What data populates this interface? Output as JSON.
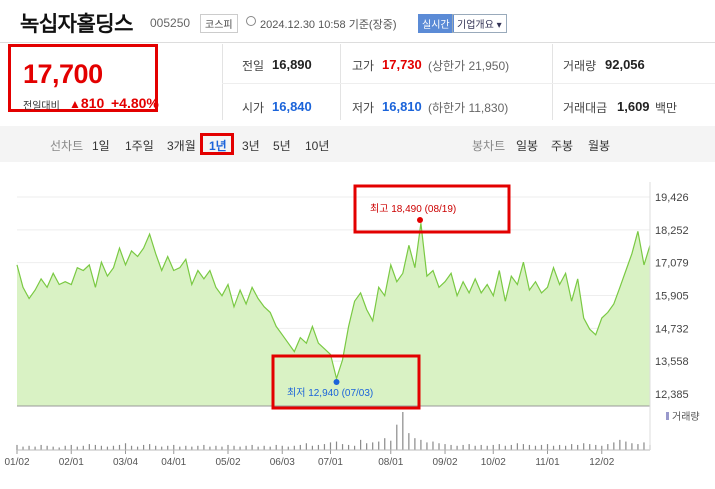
{
  "header": {
    "name": "녹십자홀딩스",
    "code": "005250",
    "market": "코스피",
    "datetime": "2024.12.30 10:58 기준(장중)",
    "realtime": "실시간",
    "corp_info": "기업개요",
    "corp_info_icon": "chevron-down-icon"
  },
  "price": {
    "current": "17,700",
    "change_label": "전일대비",
    "change_icon": "up-triangle-icon",
    "change": "810",
    "change_pct": "+4.80%",
    "up_color": "#e30000",
    "down_color": "#1b64da"
  },
  "info": {
    "prev_label": "전일",
    "prev": "16,890",
    "high_label": "고가",
    "high": "17,730",
    "upper_limit": "(상한가 21,950)",
    "volume_label": "거래량",
    "volume": "92,056",
    "open_label": "시가",
    "open": "16,840",
    "low_label": "저가",
    "low": "16,810",
    "lower_limit": "(하한가 11,830)",
    "amount_label": "거래대금",
    "amount": "1,609",
    "amount_unit": "백만"
  },
  "tabs": {
    "line_label": "선차트",
    "periods": [
      "1일",
      "1주일",
      "3개월",
      "1년",
      "3년",
      "5년",
      "10년"
    ],
    "selected": "1년",
    "candle_label": "봉차트",
    "candles": [
      "일봉",
      "주봉",
      "월봉"
    ]
  },
  "chart_data": {
    "type": "area",
    "yticks": [
      "19,426",
      "18,252",
      "17,079",
      "15,905",
      "14,732",
      "13,558",
      "12,385"
    ],
    "ylim": [
      12385,
      19426
    ],
    "xticks": [
      "01/02",
      "02/01",
      "03/04",
      "04/01",
      "05/02",
      "06/03",
      "07/01",
      "08/01",
      "09/02",
      "10/02",
      "11/01",
      "12/02"
    ],
    "x": [
      "01/02",
      "01/05",
      "01/08",
      "01/11",
      "01/15",
      "01/18",
      "01/22",
      "01/25",
      "01/29",
      "02/01",
      "02/05",
      "02/08",
      "02/13",
      "02/16",
      "02/20",
      "02/23",
      "02/27",
      "03/01",
      "03/04",
      "03/07",
      "03/11",
      "03/14",
      "03/18",
      "03/21",
      "03/25",
      "03/28",
      "04/01",
      "04/04",
      "04/08",
      "04/11",
      "04/15",
      "04/18",
      "04/22",
      "04/25",
      "04/29",
      "05/02",
      "05/06",
      "05/09",
      "05/13",
      "05/16",
      "05/20",
      "05/23",
      "05/27",
      "05/30",
      "06/03",
      "06/06",
      "06/10",
      "06/13",
      "06/17",
      "06/20",
      "06/24",
      "06/27",
      "07/01",
      "07/03",
      "07/05",
      "07/09",
      "07/12",
      "07/16",
      "07/19",
      "07/23",
      "07/26",
      "07/30",
      "08/01",
      "08/05",
      "08/08",
      "08/12",
      "08/16",
      "08/19",
      "08/22",
      "08/26",
      "08/29",
      "09/02",
      "09/05",
      "09/09",
      "09/12",
      "09/16",
      "09/20",
      "09/24",
      "09/27",
      "10/02",
      "10/07",
      "10/10",
      "10/14",
      "10/17",
      "10/21",
      "10/24",
      "10/28",
      "10/31",
      "11/01",
      "11/05",
      "11/08",
      "11/12",
      "11/15",
      "11/19",
      "11/22",
      "11/26",
      "11/29",
      "12/02",
      "12/05",
      "12/09",
      "12/12",
      "12/16",
      "12/19",
      "12/23",
      "12/27",
      "12/30"
    ],
    "values": [
      17000,
      16200,
      15800,
      16100,
      16500,
      16200,
      16700,
      16300,
      16400,
      16300,
      16900,
      16800,
      17000,
      16200,
      17100,
      16600,
      16900,
      17600,
      17000,
      17500,
      17300,
      17600,
      18100,
      17400,
      16800,
      17300,
      16800,
      16900,
      17200,
      16300,
      16800,
      16500,
      16800,
      16200,
      15900,
      16300,
      15500,
      16100,
      15600,
      16200,
      15800,
      15500,
      15300,
      14800,
      14500,
      14200,
      13900,
      14400,
      14200,
      14800,
      14200,
      14000,
      13800,
      12940,
      13600,
      14800,
      15700,
      16000,
      15400,
      15000,
      16200,
      15900,
      17000,
      16400,
      16700,
      17700,
      16900,
      18490,
      16600,
      16800,
      16200,
      16400,
      16700,
      15900,
      16400,
      16000,
      16500,
      16000,
      16300,
      15900,
      16800,
      15700,
      16600,
      16300,
      17100,
      16100,
      16400,
      16000,
      16200,
      16900,
      16300,
      16700,
      15700,
      16500,
      15100,
      14700,
      14500,
      15100,
      15300,
      15600,
      16200,
      16800,
      17400,
      18200,
      17000,
      17700
    ],
    "max": {
      "label": "최고",
      "value": "18,490",
      "date": "(08/19)"
    },
    "min": {
      "label": "최저",
      "value": "12,940",
      "date": "(07/03)"
    },
    "volume_label": "거래량",
    "volume": [
      6,
      4,
      5,
      4,
      6,
      5,
      4,
      3,
      5,
      6,
      4,
      5,
      7,
      6,
      5,
      4,
      5,
      6,
      8,
      5,
      4,
      6,
      7,
      5,
      4,
      5,
      6,
      4,
      5,
      4,
      5,
      6,
      4,
      5,
      4,
      6,
      5,
      4,
      5,
      6,
      4,
      5,
      4,
      6,
      5,
      4,
      5,
      6,
      8,
      5,
      6,
      7,
      9,
      10,
      7,
      6,
      5,
      12,
      8,
      9,
      10,
      14,
      11,
      30,
      45,
      20,
      14,
      12,
      9,
      10,
      8,
      7,
      6,
      5,
      6,
      7,
      5,
      6,
      5,
      6,
      7,
      5,
      6,
      8,
      7,
      6,
      5,
      6,
      7,
      5,
      6,
      5,
      7,
      6,
      8,
      7,
      6,
      5,
      7,
      9,
      12,
      10,
      8,
      7,
      9,
      6
    ],
    "line_color": "#7ac943",
    "fill_color": "#d9f2c4"
  }
}
